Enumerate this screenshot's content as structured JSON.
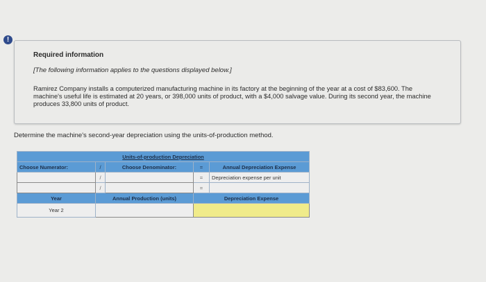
{
  "alert_icon": "!",
  "info": {
    "title": "Required information",
    "note": "[The following information applies to the questions displayed below.]",
    "paragraph": "Ramirez Company installs a computerized manufacturing machine in its factory at the beginning of the year at a cost of $83,600. The machine's useful life is estimated at 20 years, or 398,000 units of product, with a $4,000 salvage value. During its second year, the machine produces 33,800 units of product."
  },
  "question": "Determine the machine's second-year depreciation using the units-of-production method.",
  "table": {
    "title": "Units-of-production Depreciation",
    "numerator_header": "Choose Numerator:",
    "divide": "/",
    "denominator_header": "Choose Denominator:",
    "equals": "=",
    "result_header": "Annual Depreciation Expense",
    "row1_result": "Depreciation expense per unit",
    "year_header": "Year",
    "production_header": "Annual Production (units)",
    "expense_header": "Depreciation Expense",
    "year_value": "Year 2"
  },
  "colors": {
    "header": "#5b9bd5",
    "answer": "#f0eb8a",
    "alert": "#2f4b8c"
  }
}
